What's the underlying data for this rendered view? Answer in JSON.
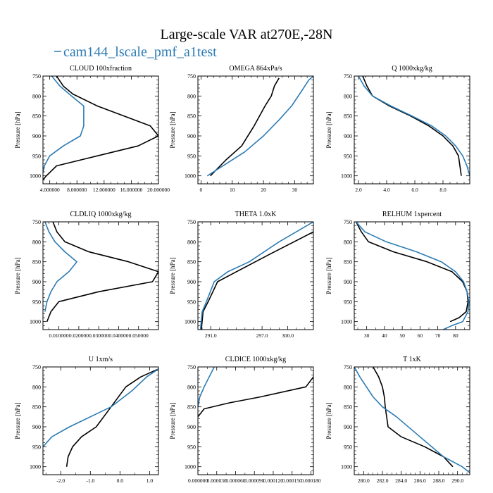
{
  "title": "Large-scale VAR at270E,-28N",
  "legend": {
    "label": "cam144_lscale_pmf_a1test",
    "color": "#2b7bb4",
    "placement": "top-left"
  },
  "colors": {
    "black_series": "#000000",
    "blue_series": "#2b7bb4"
  },
  "chart_data": [
    {
      "type": "line",
      "title": "CLOUD  100xfraction",
      "ylabel": "Pressure [hPa]",
      "xlim": [
        0.03,
        0.2
      ],
      "ylim": [
        1020,
        750
      ],
      "xticks": [
        {
          "v": 0.04,
          "label": "4.000000"
        },
        {
          "v": 0.08,
          "label": "8.000000"
        },
        {
          "v": 0.12,
          "label": "12.000000"
        },
        {
          "v": 0.16,
          "label": "16.000000"
        },
        {
          "v": 0.2,
          "label": "20.000000"
        }
      ],
      "xminor": [
        0.05,
        0.06,
        0.07,
        0.09,
        0.1,
        0.11,
        0.13,
        0.14,
        0.15,
        0.17,
        0.18,
        0.19
      ],
      "yticks": [
        750,
        800,
        850,
        900,
        950,
        1000
      ],
      "series": [
        {
          "name": "black",
          "color": "#000000",
          "x": [
            0.05,
            0.06,
            0.074,
            0.11,
            0.188,
            0.2,
            0.17,
            0.11,
            0.05,
            0.035,
            0.03
          ],
          "y": [
            750,
            775,
            795,
            825,
            875,
            900,
            925,
            950,
            975,
            1000,
            1010
          ]
        },
        {
          "name": "cam144_lscale_pmf_a1test",
          "color": "#2b7bb4",
          "x": [
            0.043,
            0.055,
            0.072,
            0.09,
            0.09,
            0.09,
            0.085,
            0.06,
            0.04,
            0.032,
            0.029
          ],
          "y": [
            750,
            775,
            800,
            825,
            850,
            875,
            900,
            925,
            950,
            975,
            1000
          ]
        }
      ]
    },
    {
      "type": "line",
      "title": "OMEGA  864xPa/s",
      "ylabel": "Pressure [hPa]",
      "xlim": [
        -1,
        36
      ],
      "ylim": [
        1020,
        750
      ],
      "xticks": [
        {
          "v": 0,
          "label": "0"
        },
        {
          "v": 10,
          "label": "10"
        },
        {
          "v": 20,
          "label": "20"
        },
        {
          "v": 30,
          "label": "30"
        }
      ],
      "xminor": [
        2,
        4,
        6,
        8,
        12,
        14,
        16,
        18,
        22,
        24,
        26,
        28,
        32,
        34
      ],
      "yticks": [
        750,
        800,
        850,
        900,
        950,
        1000
      ],
      "series": [
        {
          "name": "black",
          "color": "#000000",
          "x": [
            3,
            8,
            13,
            17,
            20.5,
            22.5,
            23.5,
            25
          ],
          "y": [
            1000,
            960,
            925,
            875,
            825,
            800,
            775,
            755
          ]
        },
        {
          "name": "cam144_lscale_pmf_a1test",
          "color": "#2b7bb4",
          "x": [
            2,
            8,
            14,
            20,
            25,
            29,
            32,
            34.5,
            36
          ],
          "y": [
            1000,
            970,
            940,
            900,
            860,
            825,
            790,
            760,
            750
          ]
        }
      ]
    },
    {
      "type": "line",
      "title": "Q  1000xkg/kg",
      "ylabel": "Pressure [hPa]",
      "xlim": [
        1.7,
        9.9
      ],
      "ylim": [
        1020,
        750
      ],
      "xticks": [
        {
          "v": 2,
          "label": "2.0"
        },
        {
          "v": 4,
          "label": "4.0"
        },
        {
          "v": 6,
          "label": "6.0"
        },
        {
          "v": 8,
          "label": "8.0"
        }
      ],
      "xminor": [
        2.5,
        3,
        3.5,
        4.5,
        5,
        5.5,
        6.5,
        7,
        7.5,
        8.5,
        9,
        9.5
      ],
      "yticks": [
        750,
        800,
        850,
        900,
        950,
        1000
      ],
      "series": [
        {
          "name": "black",
          "color": "#000000",
          "x": [
            2.3,
            2.6,
            3.0,
            4.2,
            5.7,
            7.0,
            8.0,
            8.7,
            9.1,
            9.3
          ],
          "y": [
            750,
            775,
            800,
            825,
            850,
            875,
            900,
            925,
            950,
            1000
          ]
        },
        {
          "name": "cam144_lscale_pmf_a1test",
          "color": "#2b7bb4",
          "x": [
            2.0,
            2.4,
            3.0,
            4.3,
            5.8,
            7.2,
            8.2,
            8.9,
            9.4,
            9.7,
            9.9
          ],
          "y": [
            750,
            775,
            800,
            825,
            850,
            875,
            900,
            925,
            950,
            975,
            1000
          ]
        }
      ]
    },
    {
      "type": "line",
      "title": "CLDLIQ  1000xkg/kg",
      "ylabel": "Pressure [hPa]",
      "xlim": [
        0.002,
        0.06
      ],
      "ylim": [
        1020,
        750
      ],
      "xticks": [
        {
          "v": 0.01,
          "label": "0.010000"
        },
        {
          "v": 0.02,
          "label": "0.020000"
        },
        {
          "v": 0.03,
          "label": "0.030000"
        },
        {
          "v": 0.04,
          "label": "0.040000"
        },
        {
          "v": 0.05,
          "label": "0.050000"
        }
      ],
      "xminor": [
        0.005,
        0.015,
        0.025,
        0.035,
        0.045,
        0.055
      ],
      "yticks": [
        750,
        800,
        850,
        900,
        950,
        1000
      ],
      "series": [
        {
          "name": "black",
          "color": "#000000",
          "x": [
            0.007,
            0.009,
            0.013,
            0.025,
            0.045,
            0.06,
            0.057,
            0.03,
            0.01,
            0.006,
            0.004
          ],
          "y": [
            750,
            775,
            800,
            825,
            850,
            875,
            900,
            925,
            950,
            975,
            1000
          ]
        },
        {
          "name": "cam144_lscale_pmf_a1test",
          "color": "#2b7bb4",
          "x": [
            0.003,
            0.005,
            0.008,
            0.013,
            0.019,
            0.015,
            0.009,
            0.006,
            0.004,
            0.003
          ],
          "y": [
            750,
            775,
            800,
            825,
            850,
            875,
            900,
            925,
            950,
            975
          ]
        }
      ]
    },
    {
      "type": "line",
      "title": "THETA  1.0xK",
      "ylabel": "Pressure [hPa]",
      "xlim": [
        289.5,
        303
      ],
      "ylim": [
        1020,
        750
      ],
      "xticks": [
        {
          "v": 291,
          "label": "291.0"
        },
        {
          "v": 297,
          "label": "297.0"
        },
        {
          "v": 300,
          "label": "300.0"
        }
      ],
      "xminor": [
        290,
        292,
        293,
        294,
        295,
        296,
        298,
        299,
        301,
        302
      ],
      "yticks": [
        750,
        800,
        850,
        900,
        950,
        1000
      ],
      "series": [
        {
          "name": "black",
          "color": "#000000",
          "x": [
            289.9,
            290.1,
            290.7,
            291.8,
            294.0,
            298.0,
            303.0
          ],
          "y": [
            1020,
            975,
            950,
            900,
            875,
            830,
            775
          ]
        },
        {
          "name": "cam144_lscale_pmf_a1test",
          "color": "#2b7bb4",
          "x": [
            289.8,
            290.0,
            290.5,
            291.4,
            293.0,
            295.5,
            299.0,
            303.0
          ],
          "y": [
            1020,
            975,
            950,
            900,
            875,
            850,
            800,
            750
          ]
        }
      ]
    },
    {
      "type": "line",
      "title": "RELHUM  1xpercent",
      "ylabel": "Pressure [hPa]",
      "xlim": [
        23,
        88
      ],
      "ylim": [
        1020,
        750
      ],
      "xticks": [
        {
          "v": 30,
          "label": "30"
        },
        {
          "v": 40,
          "label": "40"
        },
        {
          "v": 50,
          "label": "50"
        },
        {
          "v": 60,
          "label": "60"
        },
        {
          "v": 70,
          "label": "70"
        },
        {
          "v": 80,
          "label": "80"
        }
      ],
      "xminor": [
        25,
        35,
        45,
        55,
        65,
        75,
        85
      ],
      "yticks": [
        750,
        800,
        850,
        900,
        950,
        1000
      ],
      "series": [
        {
          "name": "black",
          "color": "#000000",
          "x": [
            24,
            27,
            31,
            45,
            64,
            78,
            84,
            86.5,
            87,
            86,
            82,
            77
          ],
          "y": [
            750,
            775,
            800,
            825,
            850,
            875,
            900,
            925,
            950,
            975,
            990,
            1000
          ]
        },
        {
          "name": "cam144_lscale_pmf_a1test",
          "color": "#2b7bb4",
          "x": [
            24,
            29,
            41,
            58,
            72,
            80,
            84.5,
            86.5,
            87.5,
            87,
            84,
            78,
            73
          ],
          "y": [
            750,
            775,
            800,
            825,
            850,
            875,
            900,
            925,
            950,
            975,
            1000,
            1010,
            1020
          ]
        }
      ]
    },
    {
      "type": "line",
      "title": "U  1xm/s",
      "ylabel": "Pressure [hPa]",
      "xlim": [
        -2.6,
        1.3
      ],
      "ylim": [
        1020,
        750
      ],
      "xticks": [
        {
          "v": -2,
          "label": "-2.0"
        },
        {
          "v": -1,
          "label": "-1.0"
        },
        {
          "v": 0,
          "label": "0.0"
        },
        {
          "v": 1,
          "label": "1.0"
        }
      ],
      "xminor": [
        -2.5,
        -1.5,
        -0.5,
        0.5
      ],
      "yticks": [
        750,
        800,
        850,
        900,
        950,
        1000
      ],
      "series": [
        {
          "name": "black",
          "color": "#000000",
          "x": [
            -1.8,
            -1.75,
            -1.6,
            -1.3,
            -0.8,
            -0.3,
            0.2,
            0.7,
            1.3
          ],
          "y": [
            1000,
            975,
            950,
            925,
            900,
            850,
            800,
            775,
            755
          ]
        },
        {
          "name": "cam144_lscale_pmf_a1test",
          "color": "#2b7bb4",
          "x": [
            -2.6,
            -2.3,
            -1.7,
            -1.0,
            -0.3,
            0.4,
            0.9,
            1.3
          ],
          "y": [
            950,
            925,
            900,
            875,
            850,
            810,
            775,
            755
          ]
        }
      ]
    },
    {
      "type": "line",
      "title": "CLDICE  1000xkg/kg",
      "ylabel": "Pressure [hPa]",
      "xlim": [
        0,
        0.000184
      ],
      "ylim": [
        1020,
        750
      ],
      "xticks": [
        {
          "v": 0,
          "label": "0.000000"
        },
        {
          "v": 3e-05,
          "label": "0.000030"
        },
        {
          "v": 6e-05,
          "label": "0.000060"
        },
        {
          "v": 9e-05,
          "label": "0.000090"
        },
        {
          "v": 0.00012,
          "label": "0.000120"
        },
        {
          "v": 0.00015,
          "label": "0.000150"
        },
        {
          "v": 0.00018,
          "label": "0.000180"
        }
      ],
      "xminor": [
        1.5e-05,
        4.5e-05,
        7.5e-05,
        0.000105,
        0.000135,
        0.000165
      ],
      "yticks": [
        750,
        800,
        850,
        900,
        950,
        1000
      ],
      "series": [
        {
          "name": "black",
          "color": "#000000",
          "x": [
            0.0,
            1e-05,
            5e-05,
            0.0001,
            0.000172,
            0.000184
          ],
          "y": [
            875,
            855,
            840,
            825,
            800,
            775
          ]
        },
        {
          "name": "cam144_lscale_pmf_a1test",
          "color": "#2b7bb4",
          "x": [
            0.0,
            3e-06,
            1e-05,
            1.8e-05,
            2.6e-05
          ],
          "y": [
            850,
            825,
            800,
            775,
            750
          ]
        }
      ]
    },
    {
      "type": "line",
      "title": "T  1xK",
      "ylabel": "Pressure [hPa]",
      "xlim": [
        279,
        291.3
      ],
      "ylim": [
        1020,
        750
      ],
      "xticks": [
        {
          "v": 280,
          "label": "280.0"
        },
        {
          "v": 282,
          "label": "282.0"
        },
        {
          "v": 284,
          "label": "284.0"
        },
        {
          "v": 286,
          "label": "286.0"
        },
        {
          "v": 288,
          "label": "288.0"
        },
        {
          "v": 290,
          "label": "290.0"
        }
      ],
      "xminor": [
        279.5,
        280.5,
        281,
        281.5,
        282.5,
        283,
        283.5,
        284.5,
        285,
        285.5,
        286.5,
        287,
        287.5,
        288.5,
        289,
        289.5,
        290.5,
        291
      ],
      "yticks": [
        750,
        800,
        850,
        900,
        950,
        1000
      ],
      "series": [
        {
          "name": "black",
          "color": "#000000",
          "x": [
            281.0,
            281.6,
            282.0,
            282.2,
            282.3,
            282.6,
            284.0,
            286.5,
            288.5,
            289.5
          ],
          "y": [
            750,
            775,
            800,
            825,
            850,
            900,
            925,
            950,
            975,
            1000
          ]
        },
        {
          "name": "cam144_lscale_pmf_a1test",
          "color": "#2b7bb4",
          "x": [
            279.0,
            279.6,
            280.3,
            281.0,
            282.0,
            283.5,
            286.0,
            288.5,
            290.5,
            291.3
          ],
          "y": [
            750,
            775,
            800,
            825,
            850,
            875,
            925,
            975,
            1000,
            1015
          ]
        }
      ]
    }
  ]
}
